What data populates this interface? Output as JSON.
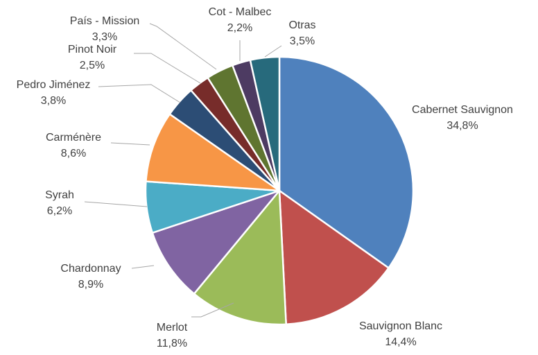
{
  "chart_data": {
    "type": "pie",
    "start_angle_deg": 0,
    "direction": "clockwise",
    "slices": [
      {
        "label": "Cabernet Sauvignon",
        "value": 34.8,
        "value_text": "34,8%",
        "color": "#4f81bd"
      },
      {
        "label": "Sauvignon Blanc",
        "value": 14.4,
        "value_text": "14,4%",
        "color": "#c0504d"
      },
      {
        "label": "Merlot",
        "value": 11.8,
        "value_text": "11,8%",
        "color": "#9bbb59"
      },
      {
        "label": "Chardonnay",
        "value": 8.9,
        "value_text": "8,9%",
        "color": "#8064a2"
      },
      {
        "label": "Syrah",
        "value": 6.2,
        "value_text": "6,2%",
        "color": "#4bacc6"
      },
      {
        "label": "Carménère",
        "value": 8.6,
        "value_text": "8,6%",
        "color": "#f79646"
      },
      {
        "label": "Pedro Jiménez",
        "value": 3.8,
        "value_text": "3,8%",
        "color": "#2c4d75"
      },
      {
        "label": "Pinot Noir",
        "value": 2.5,
        "value_text": "2,5%",
        "color": "#772c2a"
      },
      {
        "label": "País - Mission",
        "value": 3.3,
        "value_text": "3,3%",
        "color": "#5f7530"
      },
      {
        "label": "Cot - Malbec",
        "value": 2.2,
        "value_text": "2,2%",
        "color": "#4d3b62"
      },
      {
        "label": "Otras",
        "value": 3.5,
        "value_text": "3,5%",
        "color": "#276a7c"
      }
    ]
  }
}
